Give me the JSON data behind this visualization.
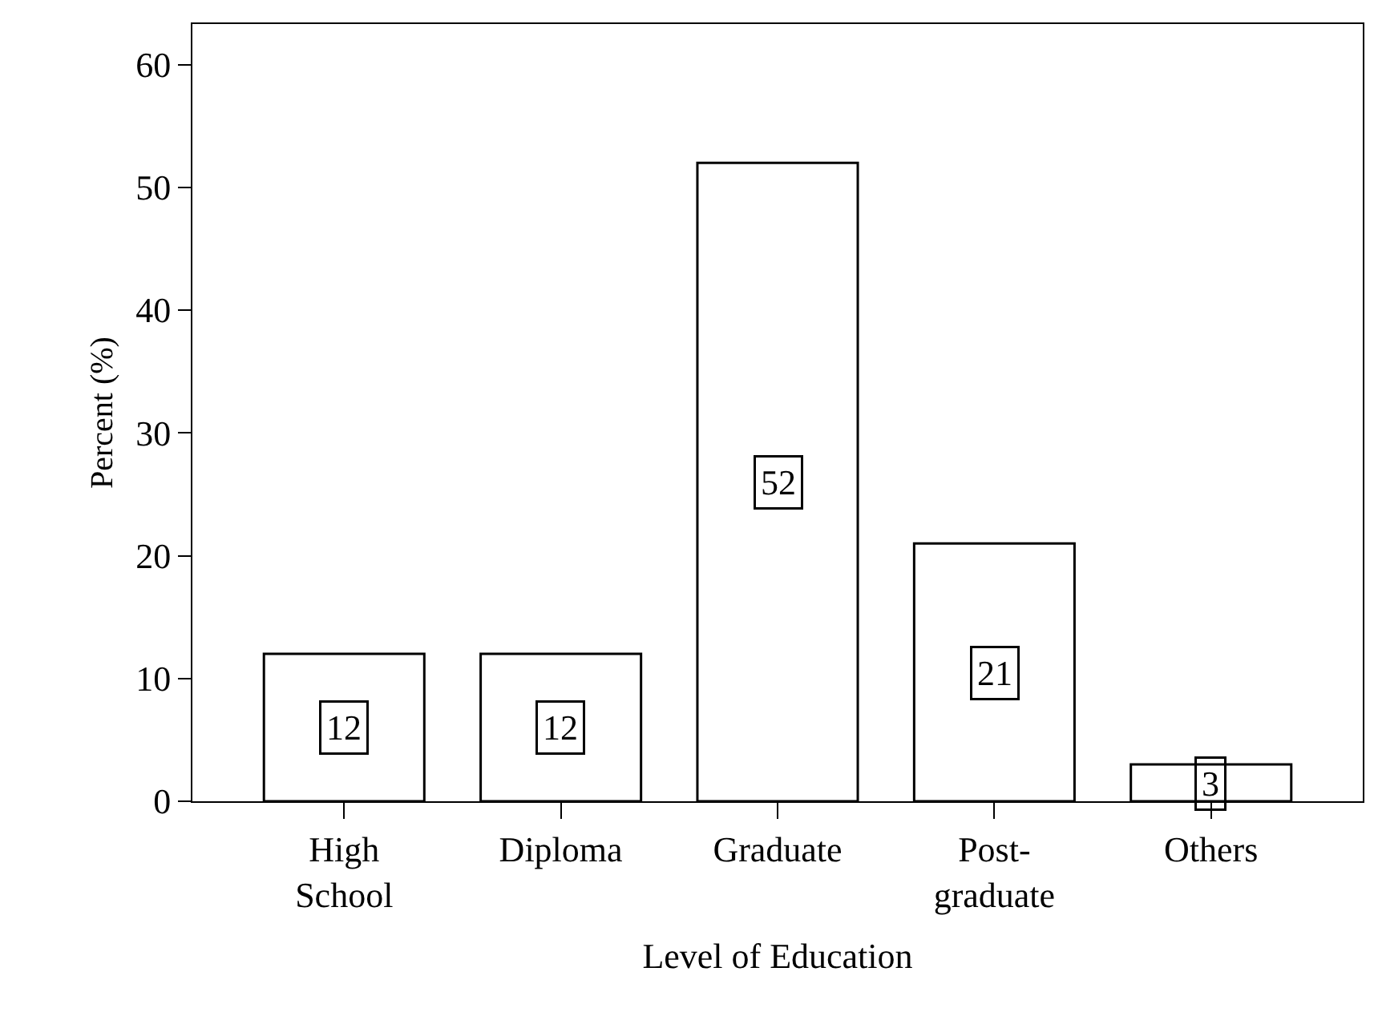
{
  "chart_data": {
    "type": "bar",
    "xlabel": "Level of Education",
    "ylabel": "Percent (%)",
    "categories": [
      "High School",
      "Diploma",
      "Graduate",
      "Post-graduate",
      "Others"
    ],
    "values": [
      12,
      12,
      52,
      21,
      3
    ],
    "color": "#ffffff",
    "ylim": [
      0,
      63.3
    ],
    "yticks": [
      0,
      10,
      20,
      30,
      40,
      50,
      60
    ],
    "data_labels": true
  }
}
